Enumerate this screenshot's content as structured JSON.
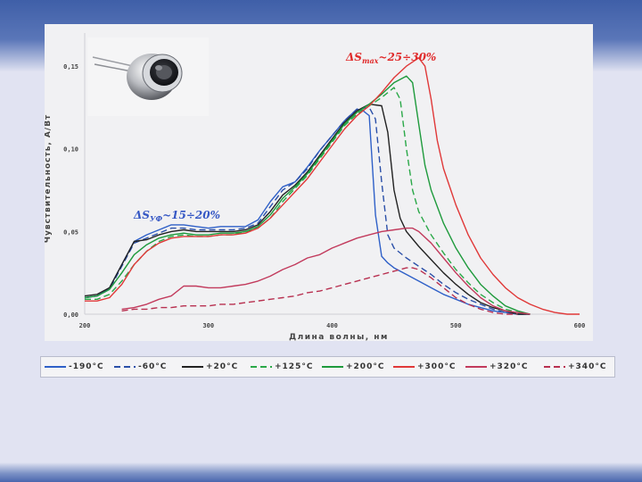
{
  "chart_data": {
    "type": "line",
    "xlabel": "Длина волны, нм",
    "ylabel": "Чувствительность, А/Вт",
    "xlim": [
      200,
      600
    ],
    "ylim": [
      0,
      0.17
    ],
    "xticks": [
      "200",
      "300",
      "400",
      "500",
      "600"
    ],
    "yticks": [
      "0,00",
      "0,05",
      "0,10",
      "0,15"
    ],
    "grid": false,
    "legend_position": "bottom",
    "annotations": {
      "uv": {
        "main": "ΔS",
        "sub": "УФ",
        "rest": "~15÷20%",
        "color": "#3557c4"
      },
      "max": {
        "main": "ΔS",
        "sub": "max",
        "rest": "~25÷30%",
        "color": "#e02a2a"
      }
    },
    "series": [
      {
        "name": "-190°C",
        "color": "#2f60c8",
        "dash": "solid",
        "x": [
          200,
          210,
          220,
          230,
          240,
          250,
          260,
          270,
          280,
          290,
          300,
          310,
          320,
          330,
          340,
          350,
          360,
          370,
          380,
          390,
          400,
          410,
          420,
          425,
          430,
          435,
          440,
          445,
          450,
          460,
          470,
          480,
          490,
          500,
          510,
          520,
          530,
          540,
          550,
          560
        ],
        "y": [
          0.01,
          0.011,
          0.016,
          0.03,
          0.044,
          0.048,
          0.051,
          0.054,
          0.054,
          0.053,
          0.052,
          0.053,
          0.053,
          0.053,
          0.057,
          0.068,
          0.077,
          0.08,
          0.089,
          0.099,
          0.108,
          0.117,
          0.124,
          0.123,
          0.12,
          0.06,
          0.035,
          0.031,
          0.028,
          0.024,
          0.02,
          0.016,
          0.012,
          0.009,
          0.006,
          0.004,
          0.002,
          0.001,
          0.0,
          0.0
        ]
      },
      {
        "name": "-60°C",
        "color": "#2a4fa8",
        "dash": "dashed",
        "x": [
          200,
          210,
          220,
          230,
          240,
          250,
          260,
          270,
          280,
          290,
          300,
          310,
          320,
          330,
          340,
          350,
          360,
          370,
          380,
          390,
          400,
          410,
          420,
          430,
          435,
          440,
          445,
          450,
          460,
          470,
          480,
          490,
          500,
          510,
          520,
          530,
          540,
          550,
          560
        ],
        "y": [
          0.01,
          0.011,
          0.015,
          0.029,
          0.043,
          0.046,
          0.049,
          0.052,
          0.052,
          0.051,
          0.051,
          0.051,
          0.051,
          0.052,
          0.055,
          0.065,
          0.075,
          0.08,
          0.088,
          0.099,
          0.108,
          0.117,
          0.124,
          0.125,
          0.118,
          0.08,
          0.048,
          0.04,
          0.034,
          0.029,
          0.024,
          0.018,
          0.013,
          0.009,
          0.006,
          0.003,
          0.001,
          0.0,
          0.0
        ]
      },
      {
        "name": "+20°C",
        "color": "#222222",
        "dash": "solid",
        "x": [
          200,
          210,
          220,
          230,
          240,
          250,
          260,
          270,
          280,
          290,
          300,
          310,
          320,
          330,
          340,
          350,
          360,
          370,
          380,
          390,
          400,
          410,
          420,
          430,
          440,
          445,
          450,
          455,
          460,
          470,
          480,
          490,
          500,
          510,
          520,
          530,
          540,
          550,
          560
        ],
        "y": [
          0.011,
          0.012,
          0.016,
          0.03,
          0.044,
          0.045,
          0.048,
          0.05,
          0.051,
          0.05,
          0.05,
          0.05,
          0.05,
          0.051,
          0.054,
          0.062,
          0.072,
          0.078,
          0.086,
          0.096,
          0.106,
          0.116,
          0.123,
          0.127,
          0.126,
          0.11,
          0.075,
          0.058,
          0.05,
          0.041,
          0.033,
          0.025,
          0.018,
          0.012,
          0.007,
          0.004,
          0.002,
          0.0,
          0.0
        ]
      },
      {
        "name": "+125°C",
        "color": "#2aa848",
        "dash": "dashed",
        "x": [
          200,
          210,
          220,
          230,
          240,
          250,
          260,
          270,
          280,
          290,
          300,
          310,
          320,
          330,
          340,
          350,
          360,
          370,
          380,
          390,
          400,
          410,
          420,
          430,
          440,
          450,
          455,
          460,
          465,
          470,
          480,
          490,
          500,
          510,
          520,
          530,
          540,
          550,
          560
        ],
        "y": [
          0.009,
          0.009,
          0.012,
          0.02,
          0.03,
          0.038,
          0.044,
          0.047,
          0.048,
          0.047,
          0.047,
          0.048,
          0.048,
          0.05,
          0.052,
          0.058,
          0.068,
          0.076,
          0.084,
          0.094,
          0.104,
          0.114,
          0.121,
          0.126,
          0.131,
          0.137,
          0.13,
          0.1,
          0.075,
          0.062,
          0.048,
          0.037,
          0.027,
          0.019,
          0.012,
          0.007,
          0.003,
          0.001,
          0.0
        ]
      },
      {
        "name": "+200°C",
        "color": "#1e9a3c",
        "dash": "solid",
        "x": [
          200,
          210,
          220,
          230,
          240,
          250,
          260,
          270,
          280,
          290,
          300,
          310,
          320,
          330,
          340,
          350,
          360,
          370,
          380,
          390,
          400,
          410,
          420,
          430,
          440,
          450,
          460,
          465,
          470,
          475,
          480,
          490,
          500,
          510,
          520,
          530,
          540,
          550,
          560
        ],
        "y": [
          0.01,
          0.011,
          0.015,
          0.025,
          0.036,
          0.042,
          0.046,
          0.048,
          0.049,
          0.048,
          0.048,
          0.049,
          0.049,
          0.05,
          0.053,
          0.06,
          0.07,
          0.077,
          0.085,
          0.095,
          0.105,
          0.115,
          0.122,
          0.127,
          0.133,
          0.14,
          0.144,
          0.14,
          0.115,
          0.09,
          0.075,
          0.055,
          0.04,
          0.028,
          0.018,
          0.011,
          0.005,
          0.002,
          0.0
        ]
      },
      {
        "name": "+300°C",
        "color": "#e03838",
        "dash": "solid",
        "x": [
          200,
          210,
          220,
          230,
          240,
          250,
          260,
          270,
          280,
          290,
          300,
          310,
          320,
          330,
          340,
          350,
          360,
          370,
          380,
          390,
          400,
          410,
          420,
          430,
          440,
          450,
          460,
          470,
          475,
          480,
          485,
          490,
          500,
          510,
          520,
          530,
          540,
          550,
          560,
          570,
          580,
          590,
          600
        ],
        "y": [
          0.008,
          0.008,
          0.01,
          0.018,
          0.03,
          0.038,
          0.043,
          0.046,
          0.047,
          0.047,
          0.047,
          0.048,
          0.048,
          0.049,
          0.052,
          0.058,
          0.066,
          0.074,
          0.082,
          0.092,
          0.102,
          0.112,
          0.12,
          0.126,
          0.134,
          0.143,
          0.15,
          0.155,
          0.15,
          0.13,
          0.105,
          0.088,
          0.066,
          0.048,
          0.034,
          0.024,
          0.016,
          0.01,
          0.006,
          0.003,
          0.001,
          0.0,
          0.0
        ]
      },
      {
        "name": "+320°C",
        "color": "#c23a5c",
        "dash": "solid",
        "x": [
          230,
          240,
          250,
          260,
          270,
          280,
          290,
          300,
          310,
          320,
          330,
          340,
          350,
          360,
          370,
          380,
          390,
          400,
          410,
          420,
          430,
          440,
          450,
          460,
          465,
          470,
          480,
          490,
          500,
          510,
          520,
          530,
          540,
          550,
          560
        ],
        "y": [
          0.003,
          0.004,
          0.006,
          0.009,
          0.011,
          0.017,
          0.017,
          0.016,
          0.016,
          0.017,
          0.018,
          0.02,
          0.023,
          0.027,
          0.03,
          0.034,
          0.036,
          0.04,
          0.043,
          0.046,
          0.048,
          0.05,
          0.051,
          0.052,
          0.052,
          0.05,
          0.043,
          0.034,
          0.025,
          0.017,
          0.01,
          0.005,
          0.002,
          0.001,
          0.0
        ]
      },
      {
        "name": "+340°C",
        "color": "#b83050",
        "dash": "dashed",
        "x": [
          230,
          240,
          250,
          260,
          270,
          280,
          290,
          300,
          310,
          320,
          330,
          340,
          350,
          360,
          370,
          380,
          390,
          400,
          410,
          420,
          430,
          440,
          450,
          460,
          465,
          470,
          480,
          490,
          500,
          510,
          520,
          530,
          540,
          550
        ],
        "y": [
          0.002,
          0.003,
          0.003,
          0.004,
          0.004,
          0.005,
          0.005,
          0.005,
          0.006,
          0.006,
          0.007,
          0.008,
          0.009,
          0.01,
          0.011,
          0.013,
          0.014,
          0.016,
          0.018,
          0.02,
          0.022,
          0.024,
          0.026,
          0.028,
          0.028,
          0.027,
          0.022,
          0.016,
          0.01,
          0.006,
          0.003,
          0.001,
          0.0,
          0.0
        ]
      }
    ]
  }
}
